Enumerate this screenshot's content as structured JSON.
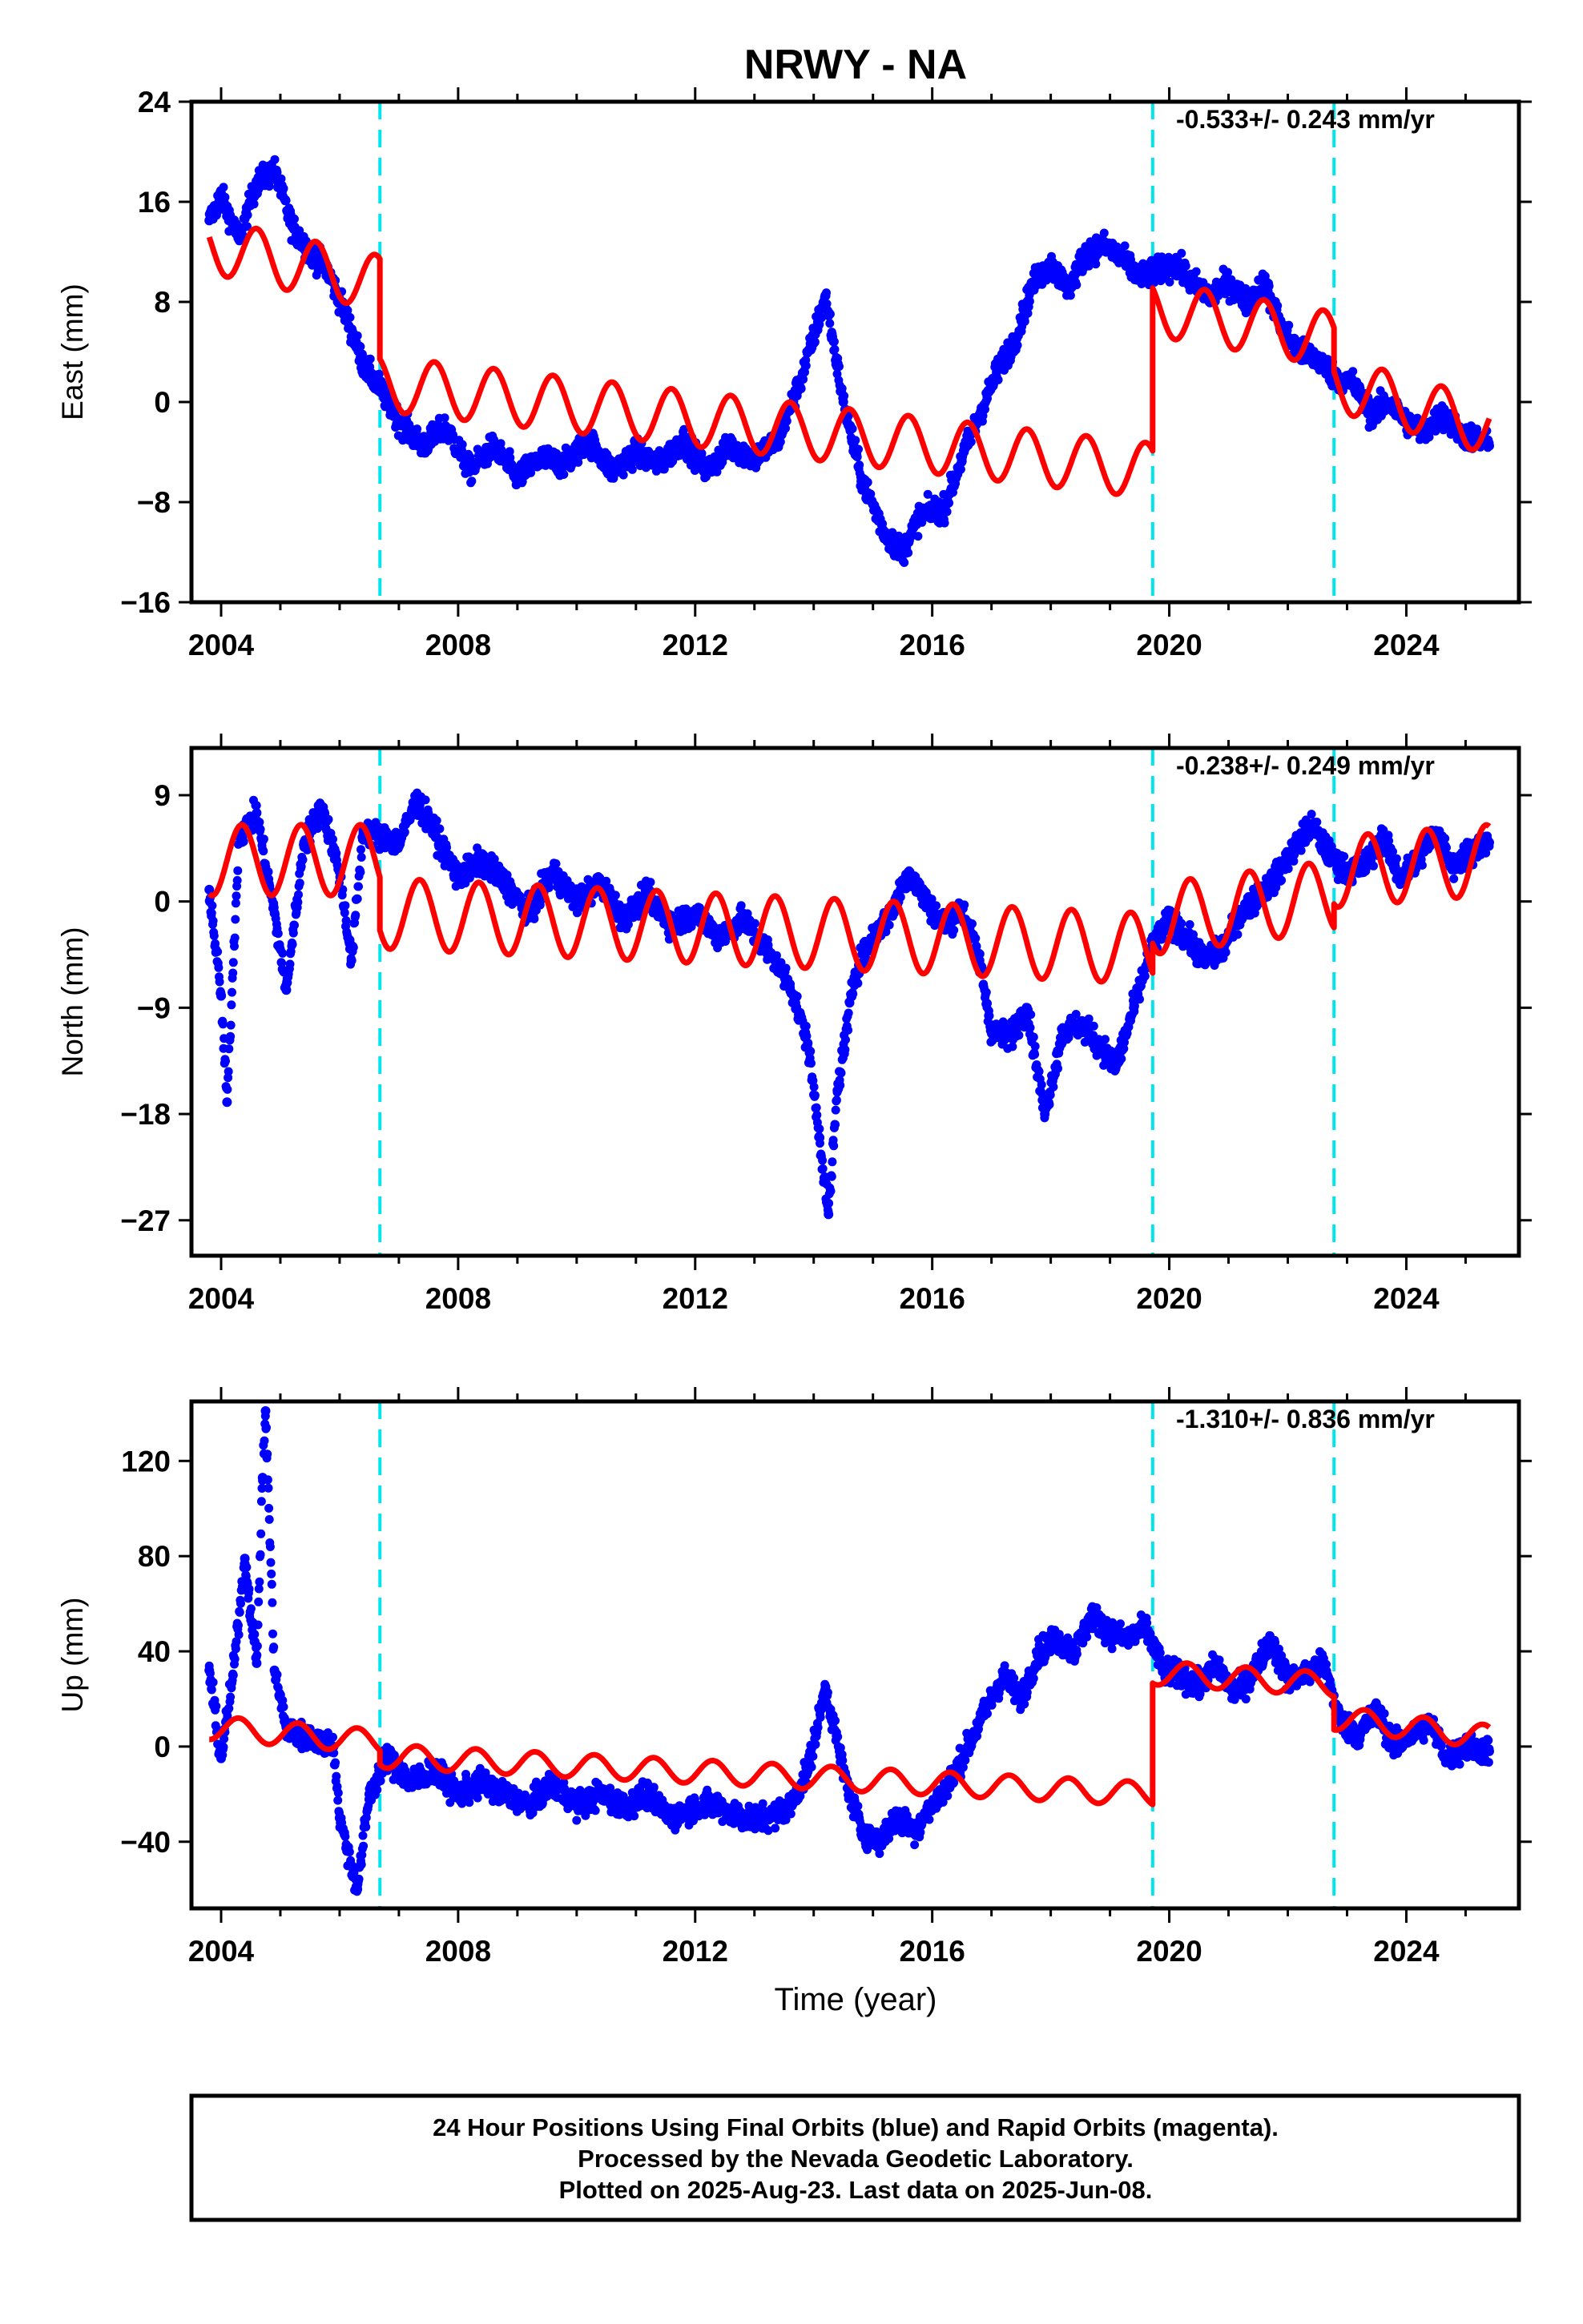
{
  "title": "NRWY - NA",
  "xlabel": "Time (year)",
  "footer": {
    "line1": "24 Hour Positions Using Final Orbits (blue) and Rapid Orbits (magenta).",
    "line2": "Processed by the Nevada Geodetic Laboratory.",
    "line3": "Plotted on 2025-Aug-23. Last data on 2025-Jun-08."
  },
  "colors": {
    "data": "#0000ff",
    "model": "#ff0000",
    "offset": "#00e5ee",
    "frame": "#000000"
  },
  "chart_data": [
    {
      "type": "scatter",
      "component": "east",
      "ylabel": "East (mm)",
      "rate_text": "-0.533+/- 0.243 mm/yr",
      "xlim": [
        2003.5,
        2025.9
      ],
      "ylim": [
        -16,
        24
      ],
      "yticks": [
        24,
        16,
        8,
        0,
        -8,
        -16
      ],
      "xticks": [
        2004,
        2008,
        2012,
        2016,
        2020,
        2024
      ],
      "offsets": [
        2006.68,
        2019.72,
        2022.78
      ],
      "data_points": [
        [
          2003.8,
          14.5
        ],
        [
          2004.0,
          16.5
        ],
        [
          2004.3,
          13.0
        ],
        [
          2004.6,
          17.5
        ],
        [
          2004.9,
          18.5
        ],
        [
          2005.2,
          14.0
        ],
        [
          2005.5,
          12.0
        ],
        [
          2005.8,
          10.5
        ],
        [
          2006.1,
          7.0
        ],
        [
          2006.4,
          3.0
        ],
        [
          2006.7,
          1.0
        ],
        [
          2007.0,
          -1.5
        ],
        [
          2007.4,
          -3.5
        ],
        [
          2007.8,
          -2.0
        ],
        [
          2008.2,
          -5.5
        ],
        [
          2008.6,
          -3.5
        ],
        [
          2009.0,
          -6.0
        ],
        [
          2009.4,
          -4.5
        ],
        [
          2009.8,
          -5.0
        ],
        [
          2010.2,
          -3.0
        ],
        [
          2010.6,
          -5.5
        ],
        [
          2011.0,
          -4.0
        ],
        [
          2011.4,
          -5.0
        ],
        [
          2011.8,
          -3.0
        ],
        [
          2012.2,
          -5.5
        ],
        [
          2012.6,
          -3.5
        ],
        [
          2013.0,
          -4.5
        ],
        [
          2013.4,
          -3.0
        ],
        [
          2013.8,
          2.0
        ],
        [
          2014.2,
          8.5
        ],
        [
          2014.5,
          0.0
        ],
        [
          2014.8,
          -6.0
        ],
        [
          2015.2,
          -10.5
        ],
        [
          2015.5,
          -12.0
        ],
        [
          2015.8,
          -9.0
        ],
        [
          2016.2,
          -8.5
        ],
        [
          2016.5,
          -4.5
        ],
        [
          2016.8,
          -1.0
        ],
        [
          2017.1,
          2.5
        ],
        [
          2017.4,
          5.0
        ],
        [
          2017.7,
          9.5
        ],
        [
          2018.0,
          11.0
        ],
        [
          2018.3,
          9.0
        ],
        [
          2018.6,
          12.0
        ],
        [
          2018.9,
          12.5
        ],
        [
          2019.2,
          11.5
        ],
        [
          2019.5,
          10.0
        ],
        [
          2019.8,
          10.5
        ],
        [
          2020.1,
          11.0
        ],
        [
          2020.4,
          9.5
        ],
        [
          2020.7,
          8.5
        ],
        [
          2021.0,
          9.5
        ],
        [
          2021.3,
          8.0
        ],
        [
          2021.6,
          9.5
        ],
        [
          2021.9,
          6.0
        ],
        [
          2022.2,
          4.0
        ],
        [
          2022.5,
          3.5
        ],
        [
          2022.8,
          2.0
        ],
        [
          2023.1,
          1.5
        ],
        [
          2023.4,
          -1.0
        ],
        [
          2023.7,
          0.0
        ],
        [
          2024.0,
          -1.5
        ],
        [
          2024.3,
          -2.5
        ],
        [
          2024.6,
          -1.0
        ],
        [
          2024.9,
          -2.5
        ],
        [
          2025.2,
          -3.0
        ],
        [
          2025.4,
          -3.5
        ]
      ],
      "model": {
        "segments": [
          {
            "x_start": 2003.8,
            "x_end": 2006.68,
            "y_start": 12.5,
            "y_end": 9.5
          },
          {
            "x_start": 2006.68,
            "x_end": 2019.72,
            "y_start": 1.5,
            "y_end": -5.5
          },
          {
            "x_start": 2019.72,
            "x_end": 2022.78,
            "y_start": 7.5,
            "y_end": 5.0
          },
          {
            "x_start": 2022.78,
            "x_end": 2025.4,
            "y_start": 1.5,
            "y_end": -2.0
          }
        ],
        "annual_amplitude": 2.2,
        "annual_phase": 0.6
      }
    },
    {
      "type": "scatter",
      "component": "north",
      "ylabel": "North (mm)",
      "rate_text": "-0.238+/- 0.249 mm/yr",
      "xlim": [
        2003.5,
        2025.9
      ],
      "ylim": [
        -30,
        13
      ],
      "yticks": [
        9,
        0,
        -9,
        -18,
        -27
      ],
      "xticks": [
        2004,
        2008,
        2012,
        2016,
        2020,
        2024
      ],
      "offsets": [
        2006.68,
        2019.72,
        2022.78
      ],
      "data_points": [
        [
          2003.8,
          1.0
        ],
        [
          2004.0,
          -8.0
        ],
        [
          2004.1,
          -17.0
        ],
        [
          2004.3,
          5.5
        ],
        [
          2004.6,
          7.5
        ],
        [
          2004.9,
          -1.0
        ],
        [
          2005.1,
          -7.5
        ],
        [
          2005.4,
          5.0
        ],
        [
          2005.7,
          8.0
        ],
        [
          2006.0,
          2.5
        ],
        [
          2006.2,
          -5.0
        ],
        [
          2006.4,
          6.0
        ],
        [
          2006.7,
          5.5
        ],
        [
          2007.0,
          5.0
        ],
        [
          2007.3,
          8.5
        ],
        [
          2007.6,
          6.0
        ],
        [
          2008.0,
          2.0
        ],
        [
          2008.4,
          3.5
        ],
        [
          2008.8,
          1.5
        ],
        [
          2009.2,
          -1.0
        ],
        [
          2009.6,
          2.5
        ],
        [
          2010.0,
          0.0
        ],
        [
          2010.4,
          1.5
        ],
        [
          2010.8,
          -1.5
        ],
        [
          2011.2,
          0.5
        ],
        [
          2011.6,
          -2.0
        ],
        [
          2012.0,
          -1.0
        ],
        [
          2012.4,
          -3.0
        ],
        [
          2012.8,
          -1.5
        ],
        [
          2013.2,
          -4.0
        ],
        [
          2013.6,
          -7.0
        ],
        [
          2013.9,
          -12.0
        ],
        [
          2014.1,
          -20.0
        ],
        [
          2014.25,
          -26.5
        ],
        [
          2014.4,
          -16.0
        ],
        [
          2014.7,
          -6.0
        ],
        [
          2015.0,
          -3.0
        ],
        [
          2015.3,
          -1.0
        ],
        [
          2015.6,
          2.5
        ],
        [
          2015.9,
          0.0
        ],
        [
          2016.2,
          -2.0
        ],
        [
          2016.5,
          -0.5
        ],
        [
          2016.8,
          -5.0
        ],
        [
          2017.0,
          -11.0
        ],
        [
          2017.3,
          -11.5
        ],
        [
          2017.6,
          -9.0
        ],
        [
          2017.9,
          -18.0
        ],
        [
          2018.2,
          -11.0
        ],
        [
          2018.5,
          -10.5
        ],
        [
          2018.8,
          -12.0
        ],
        [
          2019.1,
          -14.0
        ],
        [
          2019.4,
          -9.0
        ],
        [
          2019.7,
          -4.0
        ],
        [
          2020.0,
          -1.5
        ],
        [
          2020.3,
          -3.0
        ],
        [
          2020.6,
          -5.0
        ],
        [
          2020.9,
          -4.0
        ],
        [
          2021.2,
          -1.0
        ],
        [
          2021.5,
          0.5
        ],
        [
          2021.8,
          2.0
        ],
        [
          2022.1,
          4.5
        ],
        [
          2022.4,
          6.5
        ],
        [
          2022.7,
          4.0
        ],
        [
          2023.0,
          2.5
        ],
        [
          2023.3,
          3.0
        ],
        [
          2023.6,
          5.5
        ],
        [
          2023.9,
          2.0
        ],
        [
          2024.2,
          3.5
        ],
        [
          2024.5,
          6.0
        ],
        [
          2024.8,
          3.0
        ],
        [
          2025.1,
          4.5
        ],
        [
          2025.4,
          5.0
        ]
      ],
      "model": {
        "segments": [
          {
            "x_start": 2003.8,
            "x_end": 2006.68,
            "y_start": 3.5,
            "y_end": 3.5
          },
          {
            "x_start": 2006.68,
            "x_end": 2019.72,
            "y_start": -1.0,
            "y_end": -4.0
          },
          {
            "x_start": 2019.72,
            "x_end": 2022.78,
            "y_start": -1.5,
            "y_end": 0.5
          },
          {
            "x_start": 2022.78,
            "x_end": 2025.4,
            "y_start": 2.5,
            "y_end": 3.5
          }
        ],
        "annual_amplitude": 3.0,
        "annual_phase": 0.35
      }
    },
    {
      "type": "scatter",
      "component": "up",
      "ylabel": "Up (mm)",
      "rate_text": "-1.310+/- 0.836 mm/yr",
      "xlim": [
        2003.5,
        2025.9
      ],
      "ylim": [
        -68,
        145
      ],
      "yticks": [
        120,
        80,
        40,
        0,
        -40
      ],
      "xticks": [
        2004,
        2008,
        2012,
        2016,
        2020,
        2024
      ],
      "offsets": [
        2006.68,
        2019.72,
        2022.78
      ],
      "data_points": [
        [
          2003.8,
          32
        ],
        [
          2004.0,
          -5
        ],
        [
          2004.2,
          30
        ],
        [
          2004.4,
          79
        ],
        [
          2004.6,
          35
        ],
        [
          2004.7,
          113
        ],
        [
          2004.75,
          141
        ],
        [
          2004.9,
          32
        ],
        [
          2005.1,
          8
        ],
        [
          2005.3,
          5
        ],
        [
          2005.6,
          3
        ],
        [
          2005.9,
          0
        ],
        [
          2006.0,
          -30
        ],
        [
          2006.2,
          -50
        ],
        [
          2006.3,
          -60
        ],
        [
          2006.5,
          -20
        ],
        [
          2006.8,
          -5
        ],
        [
          2007.2,
          -15
        ],
        [
          2007.6,
          -10
        ],
        [
          2008.0,
          -20
        ],
        [
          2008.4,
          -15
        ],
        [
          2008.8,
          -20
        ],
        [
          2009.2,
          -25
        ],
        [
          2009.6,
          -15
        ],
        [
          2010.0,
          -25
        ],
        [
          2010.4,
          -20
        ],
        [
          2010.8,
          -25
        ],
        [
          2011.2,
          -20
        ],
        [
          2011.6,
          -30
        ],
        [
          2012.0,
          -25
        ],
        [
          2012.4,
          -25
        ],
        [
          2012.8,
          -30
        ],
        [
          2013.2,
          -30
        ],
        [
          2013.6,
          -25
        ],
        [
          2013.9,
          -10
        ],
        [
          2014.2,
          25
        ],
        [
          2014.5,
          -10
        ],
        [
          2014.8,
          -35
        ],
        [
          2015.1,
          -40
        ],
        [
          2015.4,
          -30
        ],
        [
          2015.7,
          -35
        ],
        [
          2016.0,
          -25
        ],
        [
          2016.3,
          -15
        ],
        [
          2016.6,
          0
        ],
        [
          2016.9,
          15
        ],
        [
          2017.2,
          30
        ],
        [
          2017.5,
          20
        ],
        [
          2017.8,
          40
        ],
        [
          2018.1,
          45
        ],
        [
          2018.4,
          40
        ],
        [
          2018.7,
          55
        ],
        [
          2019.0,
          48
        ],
        [
          2019.3,
          45
        ],
        [
          2019.6,
          50
        ],
        [
          2019.9,
          32
        ],
        [
          2020.2,
          30
        ],
        [
          2020.5,
          25
        ],
        [
          2020.8,
          35
        ],
        [
          2021.1,
          22
        ],
        [
          2021.4,
          30
        ],
        [
          2021.7,
          45
        ],
        [
          2022.0,
          28
        ],
        [
          2022.3,
          30
        ],
        [
          2022.6,
          35
        ],
        [
          2022.9,
          10
        ],
        [
          2023.2,
          5
        ],
        [
          2023.5,
          15
        ],
        [
          2023.8,
          0
        ],
        [
          2024.1,
          5
        ],
        [
          2024.4,
          10
        ],
        [
          2024.7,
          -5
        ],
        [
          2025.0,
          0
        ],
        [
          2025.4,
          -2
        ]
      ],
      "model": {
        "segments": [
          {
            "x_start": 2003.8,
            "x_end": 2006.68,
            "y_start": 8.0,
            "y_end": 2.0
          },
          {
            "x_start": 2006.68,
            "x_end": 2019.72,
            "y_start": -4.0,
            "y_end": -20.0
          },
          {
            "x_start": 2019.72,
            "x_end": 2022.78,
            "y_start": 31.0,
            "y_end": 26.0
          },
          {
            "x_start": 2022.78,
            "x_end": 2025.4,
            "y_start": 12.0,
            "y_end": 4.0
          }
        ],
        "annual_amplitude": 5.0,
        "annual_phase": 0.3
      }
    }
  ]
}
